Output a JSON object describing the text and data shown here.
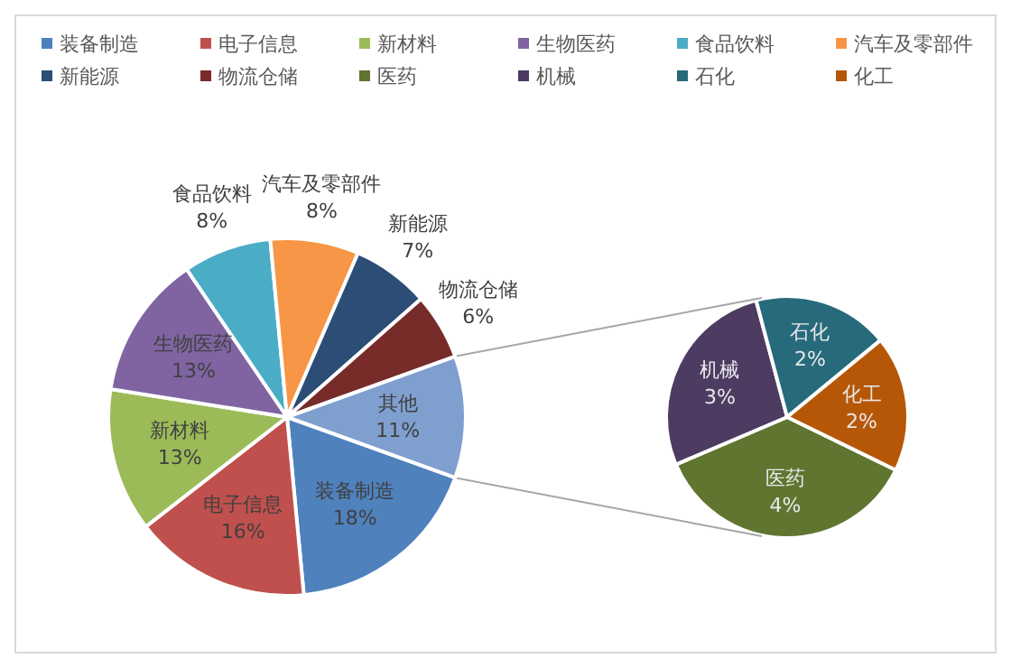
{
  "chart_data": [
    {
      "type": "pie",
      "legend": "top",
      "categories": [
        "装备制造",
        "电子信息",
        "新材料",
        "生物医药",
        "食品饮料",
        "汽车及零部件",
        "新能源",
        "物流仓储",
        "其他"
      ],
      "values": [
        18,
        16,
        13,
        13,
        8,
        8,
        7,
        6,
        11
      ],
      "value_labels": [
        "18%",
        "16%",
        "13%",
        "13%",
        "8%",
        "8%",
        "7%",
        "6%",
        "11%"
      ],
      "colors": [
        "#4f81bd",
        "#c0504d",
        "#9bbb59",
        "#8064a2",
        "#4bacc6",
        "#f79646",
        "#2c4d75",
        "#772c2a",
        "#7f9fcf"
      ]
    },
    {
      "type": "pie",
      "legend": "top",
      "categories": [
        "医药",
        "机械",
        "石化",
        "化工"
      ],
      "values": [
        4,
        3,
        2,
        2
      ],
      "value_labels": [
        "4%",
        "3%",
        "2%",
        "2%"
      ],
      "colors": [
        "#5f7530",
        "#4d3b62",
        "#276a7c",
        "#b65708"
      ]
    }
  ]
}
